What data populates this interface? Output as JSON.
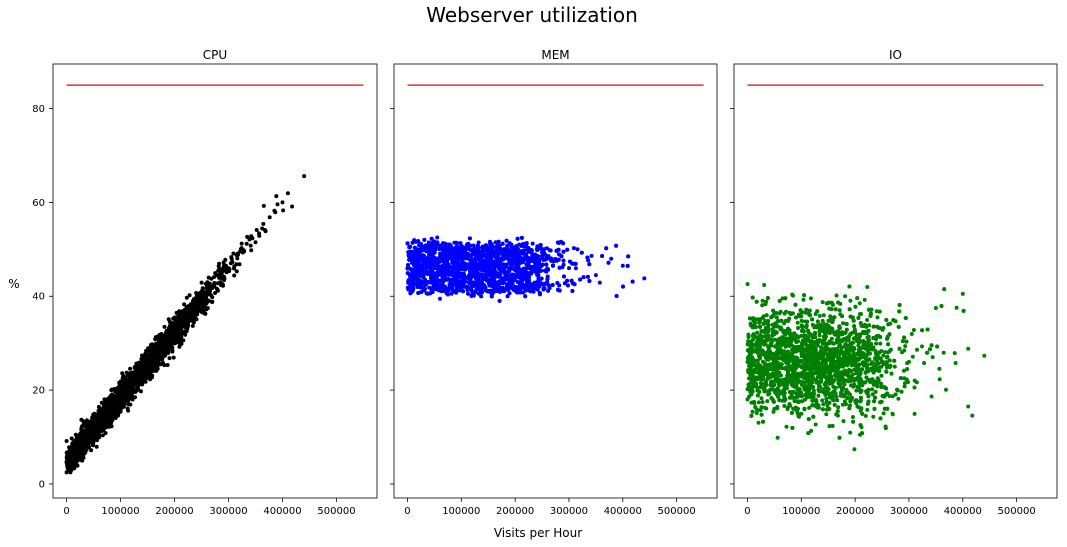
{
  "figure": {
    "title": "Webserver utilization",
    "xlabel": "Visits per Hour",
    "ylabel": "%"
  },
  "chart_data": {
    "type": "scatter",
    "title": "Webserver utilization",
    "xlabel": "Visits per Hour",
    "ylabel": "%",
    "xlim": [
      -25000,
      575000
    ],
    "ylim": [
      -3,
      89.5
    ],
    "sharey": true,
    "xticks": [
      0,
      100000,
      200000,
      300000,
      400000,
      500000
    ],
    "yticks": [
      0,
      20,
      40,
      60,
      80
    ],
    "threshold": {
      "value": 85,
      "x": [
        0,
        550000
      ],
      "color": "#e8302a"
    },
    "panels": [
      {
        "title": "CPU",
        "color": "#000000",
        "point_count": 9000,
        "relation": "y ≈ 4.6 + 0.000138·x (tight linear band, noise ±1.5)",
        "y_range": [
          0.3,
          65.6
        ],
        "sample_points": [
          [
            0,
            4.6
          ],
          [
            50000,
            11.5
          ],
          [
            100000,
            18.4
          ],
          [
            150000,
            25.3
          ],
          [
            200000,
            32.2
          ],
          [
            250000,
            39.1
          ],
          [
            300000,
            46.0
          ],
          [
            350000,
            51.5
          ],
          [
            400000,
            60.0
          ],
          [
            440000,
            65.6
          ]
        ]
      },
      {
        "title": "MEM",
        "color": "#0000ff",
        "point_count": 9000,
        "relation": "flat band, y ≈ 46 ± 5",
        "y_range": [
          37.5,
          54.8
        ],
        "sample_points": [
          [
            0,
            46
          ],
          [
            50000,
            46
          ],
          [
            100000,
            46
          ],
          [
            200000,
            46
          ],
          [
            300000,
            46
          ],
          [
            350000,
            44.5
          ],
          [
            400000,
            46.5
          ],
          [
            440000,
            43.8
          ]
        ]
      },
      {
        "title": "IO",
        "color": "#008000",
        "point_count": 9000,
        "relation": "flat band, y ≈ 26 ± 10",
        "y_range": [
          7.3,
          45.3
        ],
        "sample_points": [
          [
            0,
            26
          ],
          [
            50000,
            26
          ],
          [
            100000,
            26
          ],
          [
            200000,
            26
          ],
          [
            300000,
            26
          ],
          [
            350000,
            37.5
          ],
          [
            400000,
            40.5
          ],
          [
            410000,
            16.5
          ],
          [
            440000,
            27.3
          ]
        ]
      }
    ]
  }
}
